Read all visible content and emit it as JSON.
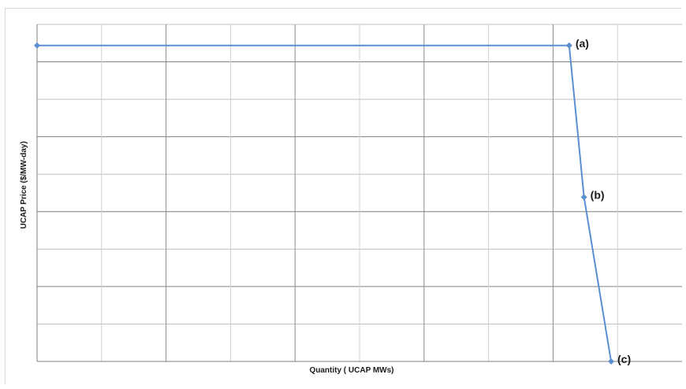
{
  "chart_data": {
    "type": "line",
    "title": "",
    "xlabel": "Quantity ( UCAP MWs)",
    "ylabel": "UCAP Price ($/MW-day)",
    "xlim": [
      0,
      10
    ],
    "ylim": [
      0,
      8
    ],
    "grid": true,
    "x_tick_labels": [],
    "y_tick_labels": [],
    "series": [
      {
        "color": "#5b8fd0",
        "points": [
          {
            "x": 0,
            "y": 7.5,
            "label": ""
          },
          {
            "x": 8.25,
            "y": 7.5,
            "label": "(a)"
          },
          {
            "x": 8.48,
            "y": 3.9,
            "label": "(b)"
          },
          {
            "x": 8.9,
            "y": 0,
            "label": "(c)"
          }
        ]
      }
    ]
  }
}
